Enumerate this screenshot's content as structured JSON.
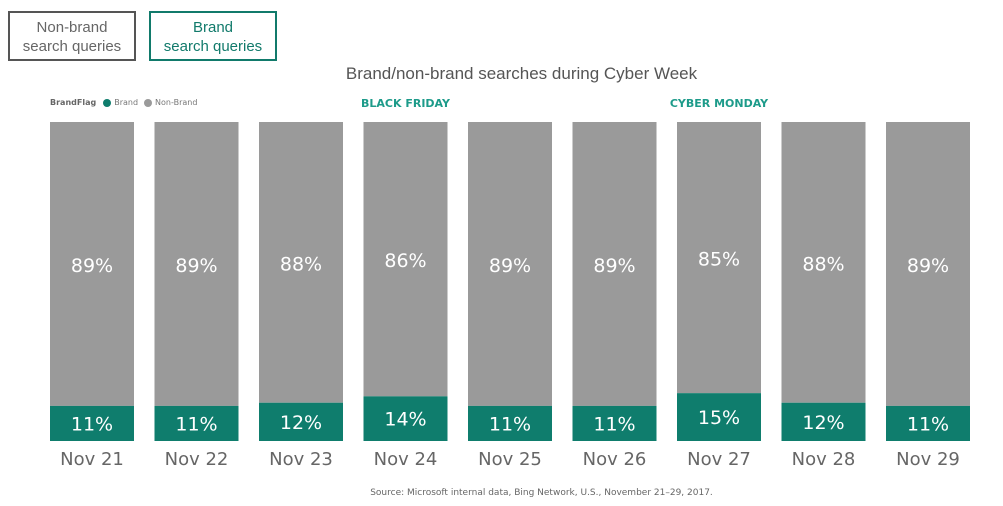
{
  "buttons": {
    "non_brand": [
      "Non-brand",
      "search queries"
    ],
    "brand": [
      "Brand",
      "search queries"
    ]
  },
  "colors": {
    "brand": "#0f7d6d",
    "non_brand": "#9a9a9a"
  },
  "chart_data": {
    "type": "bar",
    "stacked": true,
    "percent": true,
    "title": "Brand/non-brand searches during Cyber Week",
    "legend": {
      "title": "BrandFlag",
      "entries": [
        "Brand",
        "Non-Brand"
      ],
      "placement": "top-left"
    },
    "categories": [
      "Nov 21",
      "Nov 22",
      "Nov 23",
      "Nov 24",
      "Nov 25",
      "Nov 26",
      "Nov 27",
      "Nov 28",
      "Nov 29"
    ],
    "series": [
      {
        "name": "Brand",
        "values": [
          11,
          11,
          12,
          14,
          11,
          11,
          15,
          12,
          11
        ]
      },
      {
        "name": "Non-Brand",
        "values": [
          89,
          89,
          88,
          86,
          89,
          89,
          85,
          88,
          89
        ]
      }
    ],
    "annotations": [
      {
        "category": "Nov 24",
        "text": "BLACK FRIDAY"
      },
      {
        "category": "Nov 27",
        "text": "CYBER MONDAY"
      }
    ],
    "ylim": [
      0,
      100
    ],
    "grid": false
  },
  "source": "Source: Microsoft internal data, Bing Network, U.S., November 21–29, 2017."
}
